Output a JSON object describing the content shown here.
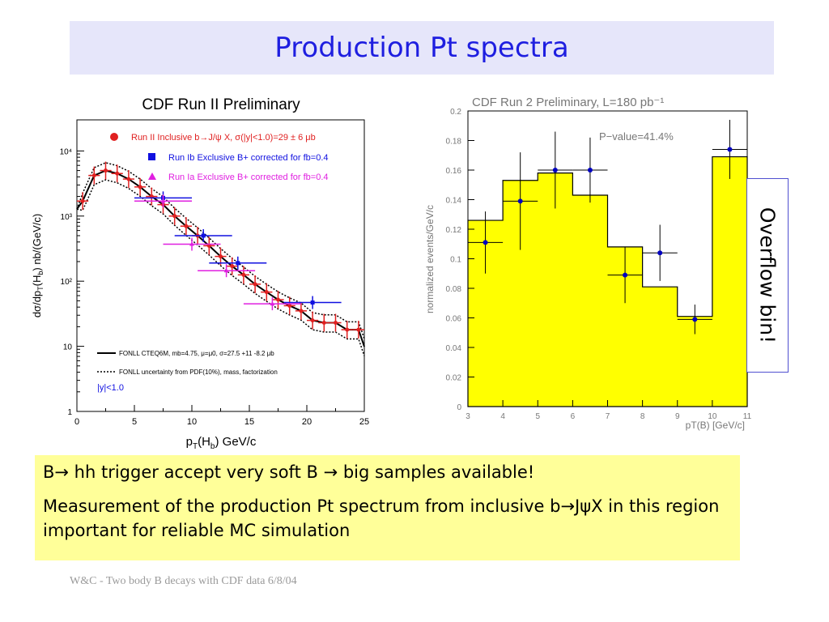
{
  "title": "Production Pt spectra",
  "overflow_label": "Overflow bin!",
  "notes": [
    "B→ hh trigger accept very soft B → big samples available!",
    "Measurement of the production Pt spectrum from inclusive b→JψX in this region important for reliable MC simulation"
  ],
  "footer": "W&C - Two body B decays with CDF data 6/8/04",
  "chart_data": [
    {
      "type": "scatter",
      "title": "CDF Run II Preliminary",
      "xlabel": "pT(Hb) GeV/c",
      "ylabel": "dσ/dpT(Hb) nb/(GeV/c)",
      "xlim": [
        0,
        25
      ],
      "ylim": [
        1,
        30000
      ],
      "yscale": "log",
      "x_ticks": [
        "0",
        "5",
        "10",
        "15",
        "20",
        "25"
      ],
      "y_ticks": [
        "1",
        "10",
        "10²",
        "10³",
        "10⁴"
      ],
      "legend_entries": [
        "Run II Inclusive b→J/ψ X, σ(|y|<1.0)=29 ± 6 μb",
        "Run Ib Exclusive B+ corrected for fb=0.4",
        "Run Ia Exclusive B+ corrected for fb=0.4"
      ],
      "legend_colors": [
        "#e02020",
        "#1010e0",
        "#e020e0"
      ],
      "curve_labels": [
        "FONLL CTEQ6M, mb=4.75, μ=μ0, σ=27.5 +11 -8.2 μb",
        "FONLL uncertainty from PDF(10%), mass, factorization"
      ],
      "rapidity_label": "|y|<1.0",
      "series": [
        {
          "name": "Run II Inclusive b→J/ψ X",
          "color": "#e02020",
          "x": [
            0.5,
            1.5,
            2.5,
            3.5,
            4.5,
            5.5,
            6.5,
            7.5,
            8.5,
            9.5,
            10.5,
            11.5,
            12.5,
            13.5,
            14.5,
            15.5,
            16.5,
            17.5,
            18.5,
            19.5,
            20.5,
            21.5,
            22.5,
            23.5,
            24.5
          ],
          "values": [
            1700,
            4200,
            5000,
            4500,
            3700,
            2800,
            2000,
            1500,
            1000,
            700,
            500,
            350,
            240,
            170,
            125,
            90,
            68,
            52,
            42,
            35,
            25,
            23,
            23,
            18,
            18
          ]
        },
        {
          "name": "Run Ib Exclusive B+",
          "color": "#1010e0",
          "x": [
            7.5,
            11,
            14,
            20.5
          ],
          "values": [
            1900,
            500,
            190,
            47
          ]
        },
        {
          "name": "Run Ia Exclusive B+",
          "color": "#e020e0",
          "x": [
            7.5,
            10,
            13,
            17
          ],
          "values": [
            1700,
            370,
            145,
            45
          ]
        }
      ]
    },
    {
      "type": "bar",
      "title": "CDF Run 2 Preliminary, L=180 pb⁻¹",
      "annotation": "P−value=41.4%",
      "xlabel": "pT(B) [GeV/c]",
      "ylabel": "normalized events/GeV/c",
      "xlim": [
        3,
        11
      ],
      "ylim": [
        0,
        0.2
      ],
      "x_ticks": [
        "3",
        "4",
        "5",
        "6",
        "7",
        "8",
        "9",
        "10",
        "11"
      ],
      "y_ticks": [
        "0",
        "0.02",
        "0.04",
        "0.06",
        "0.08",
        "0.1",
        "0.12",
        "0.14",
        "0.16",
        "0.18",
        "0.2"
      ],
      "bar_color": "#ffff00",
      "bin_edges": [
        3,
        4,
        5,
        6,
        7,
        8,
        9,
        10,
        11
      ],
      "values": [
        0.126,
        0.153,
        0.158,
        0.143,
        0.108,
        0.081,
        0.061,
        0.169
      ],
      "points": {
        "color": "#0000c0",
        "x": [
          3.5,
          4.5,
          5.5,
          6.5,
          7.5,
          8.5,
          9.5,
          10.5
        ],
        "y": [
          0.111,
          0.139,
          0.16,
          0.16,
          0.089,
          0.104,
          0.059,
          0.174
        ],
        "err": [
          0.021,
          0.033,
          0.026,
          0.022,
          0.019,
          0.019,
          0.01,
          0.02
        ]
      }
    }
  ]
}
